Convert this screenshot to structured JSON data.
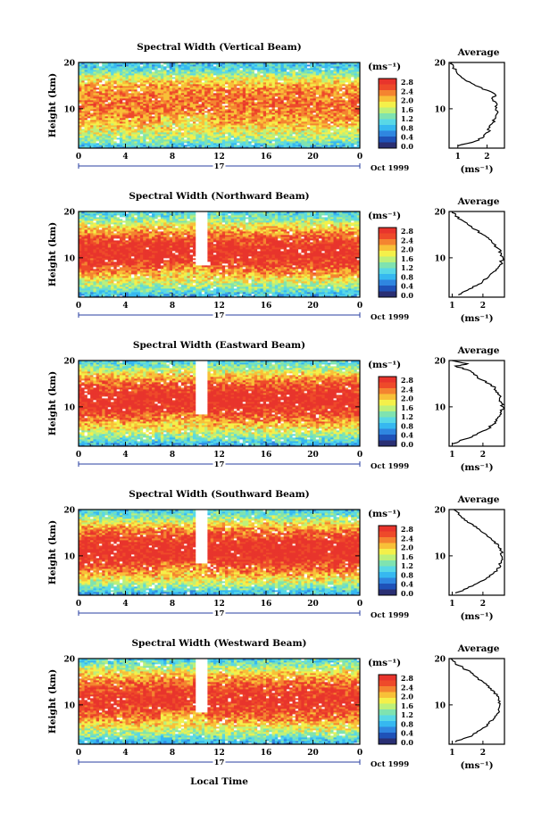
{
  "figure": {
    "x_axis_label": "Local Time",
    "date_label": "Oct 1999",
    "day_label": "17",
    "colorbar_unit": "(ms⁻¹)",
    "colorbar_ticks": [
      "2.8",
      "2.4",
      "2.0",
      "1.6",
      "1.2",
      "0.8",
      "0.4",
      "0.0"
    ],
    "average_title": "Average",
    "average_unit": "(ms⁻¹)"
  },
  "colors": {
    "scale": [
      "#2a2f73",
      "#1f52b8",
      "#2f86e0",
      "#36b8f0",
      "#58d8e6",
      "#7fe3b0",
      "#bdf07a",
      "#f4f04a",
      "#f8c038",
      "#f48430",
      "#ee4a2a",
      "#e8342c"
    ],
    "gap": "#ffffff"
  },
  "chart_data": [
    {
      "type": "heatmap",
      "title": "Spectral Width (Vertical Beam)",
      "ylabel": "Height (km)",
      "x_ticks": [
        "0",
        "4",
        "8",
        "12",
        "16",
        "20",
        "0"
      ],
      "y_ticks": [
        "10",
        "20"
      ],
      "xlim": [
        0,
        24
      ],
      "ylim": [
        1.5,
        20
      ],
      "zlim": [
        0.0,
        2.8
      ],
      "data_gap_hours": [],
      "profile_base": [
        [
          1.5,
          0.8
        ],
        [
          3,
          1.3
        ],
        [
          5,
          1.7
        ],
        [
          7,
          2.0
        ],
        [
          9,
          2.2
        ],
        [
          11,
          2.3
        ],
        [
          13,
          2.25
        ],
        [
          15,
          2.1
        ],
        [
          17,
          1.6
        ],
        [
          18.5,
          1.1
        ],
        [
          20,
          0.9
        ]
      ],
      "average": {
        "xlim": [
          0.7,
          2.6
        ],
        "x_ticks": [
          "1",
          "2"
        ],
        "y_ticks": [
          "10",
          "20"
        ],
        "profile": [
          [
            2.0,
            1.0
          ],
          [
            3.0,
            1.6
          ],
          [
            4.0,
            1.9
          ],
          [
            5.0,
            2.05
          ],
          [
            6.0,
            2.1
          ],
          [
            7.0,
            2.2
          ],
          [
            8.0,
            2.3
          ],
          [
            9.0,
            2.35
          ],
          [
            10.0,
            2.3
          ],
          [
            11.0,
            2.35
          ],
          [
            12.0,
            2.2
          ],
          [
            13.0,
            2.3
          ],
          [
            14.0,
            2.0
          ],
          [
            15.0,
            1.6
          ],
          [
            16.0,
            1.3
          ],
          [
            17.0,
            1.1
          ],
          [
            18.0,
            0.95
          ],
          [
            19.0,
            0.85
          ],
          [
            20.0,
            0.8
          ]
        ]
      }
    },
    {
      "type": "heatmap",
      "title": "Spectral Width (Northward Beam)",
      "ylabel": "Height (km)",
      "x_ticks": [
        "0",
        "4",
        "8",
        "12",
        "16",
        "20",
        "0"
      ],
      "y_ticks": [
        "10",
        "20"
      ],
      "xlim": [
        0,
        24
      ],
      "ylim": [
        1.5,
        20
      ],
      "zlim": [
        0.0,
        2.8
      ],
      "data_gap_hours": [
        [
          10.0,
          11.0,
          8.5
        ]
      ],
      "profile_base": [
        [
          1.5,
          0.7
        ],
        [
          3,
          1.2
        ],
        [
          5,
          1.7
        ],
        [
          7,
          2.2
        ],
        [
          9,
          2.6
        ],
        [
          11,
          2.75
        ],
        [
          13,
          2.65
        ],
        [
          15,
          2.3
        ],
        [
          17,
          1.8
        ],
        [
          18.5,
          1.3
        ],
        [
          20,
          1.0
        ]
      ],
      "average": {
        "xlim": [
          0.9,
          2.7
        ],
        "x_ticks": [
          "1",
          "2"
        ],
        "y_ticks": [
          "10",
          "20"
        ],
        "profile": [
          [
            2.0,
            1.2
          ],
          [
            3.0,
            1.5
          ],
          [
            4.0,
            1.8
          ],
          [
            5.0,
            2.0
          ],
          [
            6.0,
            2.2
          ],
          [
            7.0,
            2.35
          ],
          [
            8.0,
            2.5
          ],
          [
            9.0,
            2.6
          ],
          [
            10.0,
            2.65
          ],
          [
            11.0,
            2.6
          ],
          [
            12.0,
            2.5
          ],
          [
            13.0,
            2.35
          ],
          [
            14.0,
            2.2
          ],
          [
            15.0,
            2.0
          ],
          [
            16.0,
            1.8
          ],
          [
            17.0,
            1.55
          ],
          [
            18.0,
            1.35
          ],
          [
            19.0,
            1.1
          ],
          [
            20.0,
            1.0
          ]
        ]
      }
    },
    {
      "type": "heatmap",
      "title": "Spectral Width (Eastward Beam)",
      "ylabel": "Height (km)",
      "x_ticks": [
        "0",
        "4",
        "8",
        "12",
        "16",
        "20",
        "0"
      ],
      "y_ticks": [
        "10",
        "20"
      ],
      "xlim": [
        0,
        24
      ],
      "ylim": [
        1.5,
        20
      ],
      "zlim": [
        0.0,
        2.8
      ],
      "data_gap_hours": [
        [
          10.0,
          11.0,
          8.5
        ]
      ],
      "profile_base": [
        [
          1.5,
          0.7
        ],
        [
          3,
          1.2
        ],
        [
          5,
          1.7
        ],
        [
          7,
          2.2
        ],
        [
          9,
          2.6
        ],
        [
          11,
          2.75
        ],
        [
          13,
          2.7
        ],
        [
          15,
          2.4
        ],
        [
          17,
          1.9
        ],
        [
          18.5,
          1.4
        ],
        [
          20,
          1.0
        ]
      ],
      "average": {
        "xlim": [
          0.9,
          2.7
        ],
        "x_ticks": [
          "1",
          "2"
        ],
        "y_ticks": [
          "10",
          "20"
        ],
        "profile": [
          [
            2.0,
            1.0
          ],
          [
            3.0,
            1.4
          ],
          [
            4.0,
            1.8
          ],
          [
            5.0,
            2.1
          ],
          [
            6.0,
            2.3
          ],
          [
            7.0,
            2.45
          ],
          [
            8.0,
            2.55
          ],
          [
            9.0,
            2.6
          ],
          [
            10.0,
            2.65
          ],
          [
            11.0,
            2.6
          ],
          [
            12.0,
            2.55
          ],
          [
            13.0,
            2.5
          ],
          [
            14.0,
            2.4
          ],
          [
            15.0,
            2.2
          ],
          [
            16.0,
            1.9
          ],
          [
            17.0,
            1.7
          ],
          [
            18.0,
            1.5
          ],
          [
            18.8,
            1.1
          ],
          [
            19.3,
            1.5
          ],
          [
            20.0,
            1.0
          ]
        ]
      }
    },
    {
      "type": "heatmap",
      "title": "Spectral Width (Southward Beam)",
      "ylabel": "Height (km)",
      "x_ticks": [
        "0",
        "4",
        "8",
        "12",
        "16",
        "20",
        "0"
      ],
      "y_ticks": [
        "10",
        "20"
      ],
      "xlim": [
        0,
        24
      ],
      "ylim": [
        1.5,
        20
      ],
      "zlim": [
        0.0,
        2.8
      ],
      "data_gap_hours": [
        [
          10.0,
          11.0,
          8.5
        ]
      ],
      "profile_base": [
        [
          1.5,
          0.7
        ],
        [
          3,
          1.2
        ],
        [
          5,
          1.8
        ],
        [
          7,
          2.3
        ],
        [
          9,
          2.65
        ],
        [
          11,
          2.8
        ],
        [
          13,
          2.7
        ],
        [
          15,
          2.35
        ],
        [
          17,
          1.85
        ],
        [
          18.5,
          1.3
        ],
        [
          20,
          1.0
        ]
      ],
      "average": {
        "xlim": [
          0.9,
          2.7
        ],
        "x_ticks": [
          "1",
          "2"
        ],
        "y_ticks": [
          "10",
          "20"
        ],
        "profile": [
          [
            2.0,
            1.1
          ],
          [
            3.0,
            1.5
          ],
          [
            4.0,
            1.8
          ],
          [
            5.0,
            2.1
          ],
          [
            6.0,
            2.3
          ],
          [
            7.0,
            2.45
          ],
          [
            8.0,
            2.55
          ],
          [
            9.0,
            2.6
          ],
          [
            10.0,
            2.6
          ],
          [
            11.0,
            2.6
          ],
          [
            12.0,
            2.5
          ],
          [
            13.0,
            2.4
          ],
          [
            14.0,
            2.2
          ],
          [
            15.0,
            2.0
          ],
          [
            16.0,
            1.8
          ],
          [
            17.0,
            1.6
          ],
          [
            18.0,
            1.4
          ],
          [
            19.0,
            1.2
          ],
          [
            20.0,
            1.05
          ]
        ]
      }
    },
    {
      "type": "heatmap",
      "title": "Spectral Width (Westward Beam)",
      "ylabel": "Height (km)",
      "x_ticks": [
        "0",
        "4",
        "8",
        "12",
        "16",
        "20",
        "0"
      ],
      "y_ticks": [
        "10",
        "20"
      ],
      "xlim": [
        0,
        24
      ],
      "ylim": [
        1.5,
        20
      ],
      "zlim": [
        0.0,
        2.8
      ],
      "data_gap_hours": [
        [
          10.0,
          11.0,
          8.5
        ]
      ],
      "profile_base": [
        [
          1.5,
          0.7
        ],
        [
          3,
          1.2
        ],
        [
          5,
          1.7
        ],
        [
          7,
          2.2
        ],
        [
          9,
          2.55
        ],
        [
          11,
          2.7
        ],
        [
          13,
          2.6
        ],
        [
          15,
          2.3
        ],
        [
          17,
          1.85
        ],
        [
          18.5,
          1.35
        ],
        [
          20,
          1.0
        ]
      ],
      "average": {
        "xlim": [
          0.9,
          2.7
        ],
        "x_ticks": [
          "1",
          "2"
        ],
        "y_ticks": [
          "10",
          "20"
        ],
        "profile": [
          [
            2.0,
            1.1
          ],
          [
            3.0,
            1.5
          ],
          [
            4.0,
            1.8
          ],
          [
            5.0,
            2.0
          ],
          [
            6.0,
            2.2
          ],
          [
            7.0,
            2.35
          ],
          [
            8.0,
            2.45
          ],
          [
            9.0,
            2.5
          ],
          [
            10.0,
            2.55
          ],
          [
            11.0,
            2.5
          ],
          [
            12.0,
            2.45
          ],
          [
            13.0,
            2.35
          ],
          [
            14.0,
            2.2
          ],
          [
            15.0,
            2.0
          ],
          [
            16.0,
            1.8
          ],
          [
            17.0,
            1.6
          ],
          [
            18.0,
            1.35
          ],
          [
            19.0,
            1.1
          ],
          [
            20.0,
            0.95
          ]
        ]
      }
    }
  ]
}
